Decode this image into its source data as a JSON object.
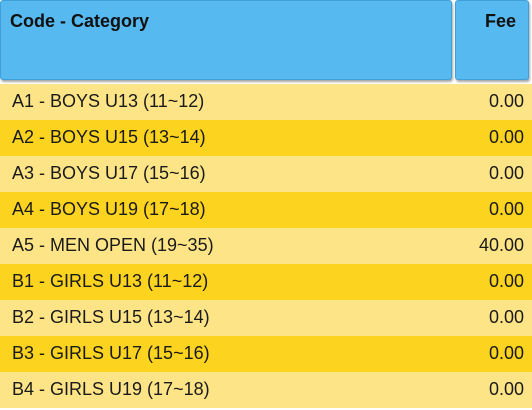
{
  "table": {
    "headers": {
      "code_category": "Code - Category",
      "fee": "Fee"
    },
    "rows": [
      {
        "code_category": "A1 - BOYS U13 (11~12)",
        "fee": "0.00"
      },
      {
        "code_category": "A2 - BOYS U15 (13~14)",
        "fee": "0.00"
      },
      {
        "code_category": "A3 - BOYS U17 (15~16)",
        "fee": "0.00"
      },
      {
        "code_category": "A4 - BOYS U19 (17~18)",
        "fee": "0.00"
      },
      {
        "code_category": "A5 - MEN OPEN (19~35)",
        "fee": "40.00"
      },
      {
        "code_category": "B1 - GIRLS U13 (11~12)",
        "fee": "0.00"
      },
      {
        "code_category": "B2 - GIRLS U15 (13~14)",
        "fee": "0.00"
      },
      {
        "code_category": "B3 - GIRLS U17 (15~16)",
        "fee": "0.00"
      },
      {
        "code_category": "B4 - GIRLS U19 (17~18)",
        "fee": "0.00"
      }
    ]
  },
  "colors": {
    "header_bg": "#56b9ef",
    "row_light": "#fde587",
    "row_dark": "#fcd31f"
  }
}
